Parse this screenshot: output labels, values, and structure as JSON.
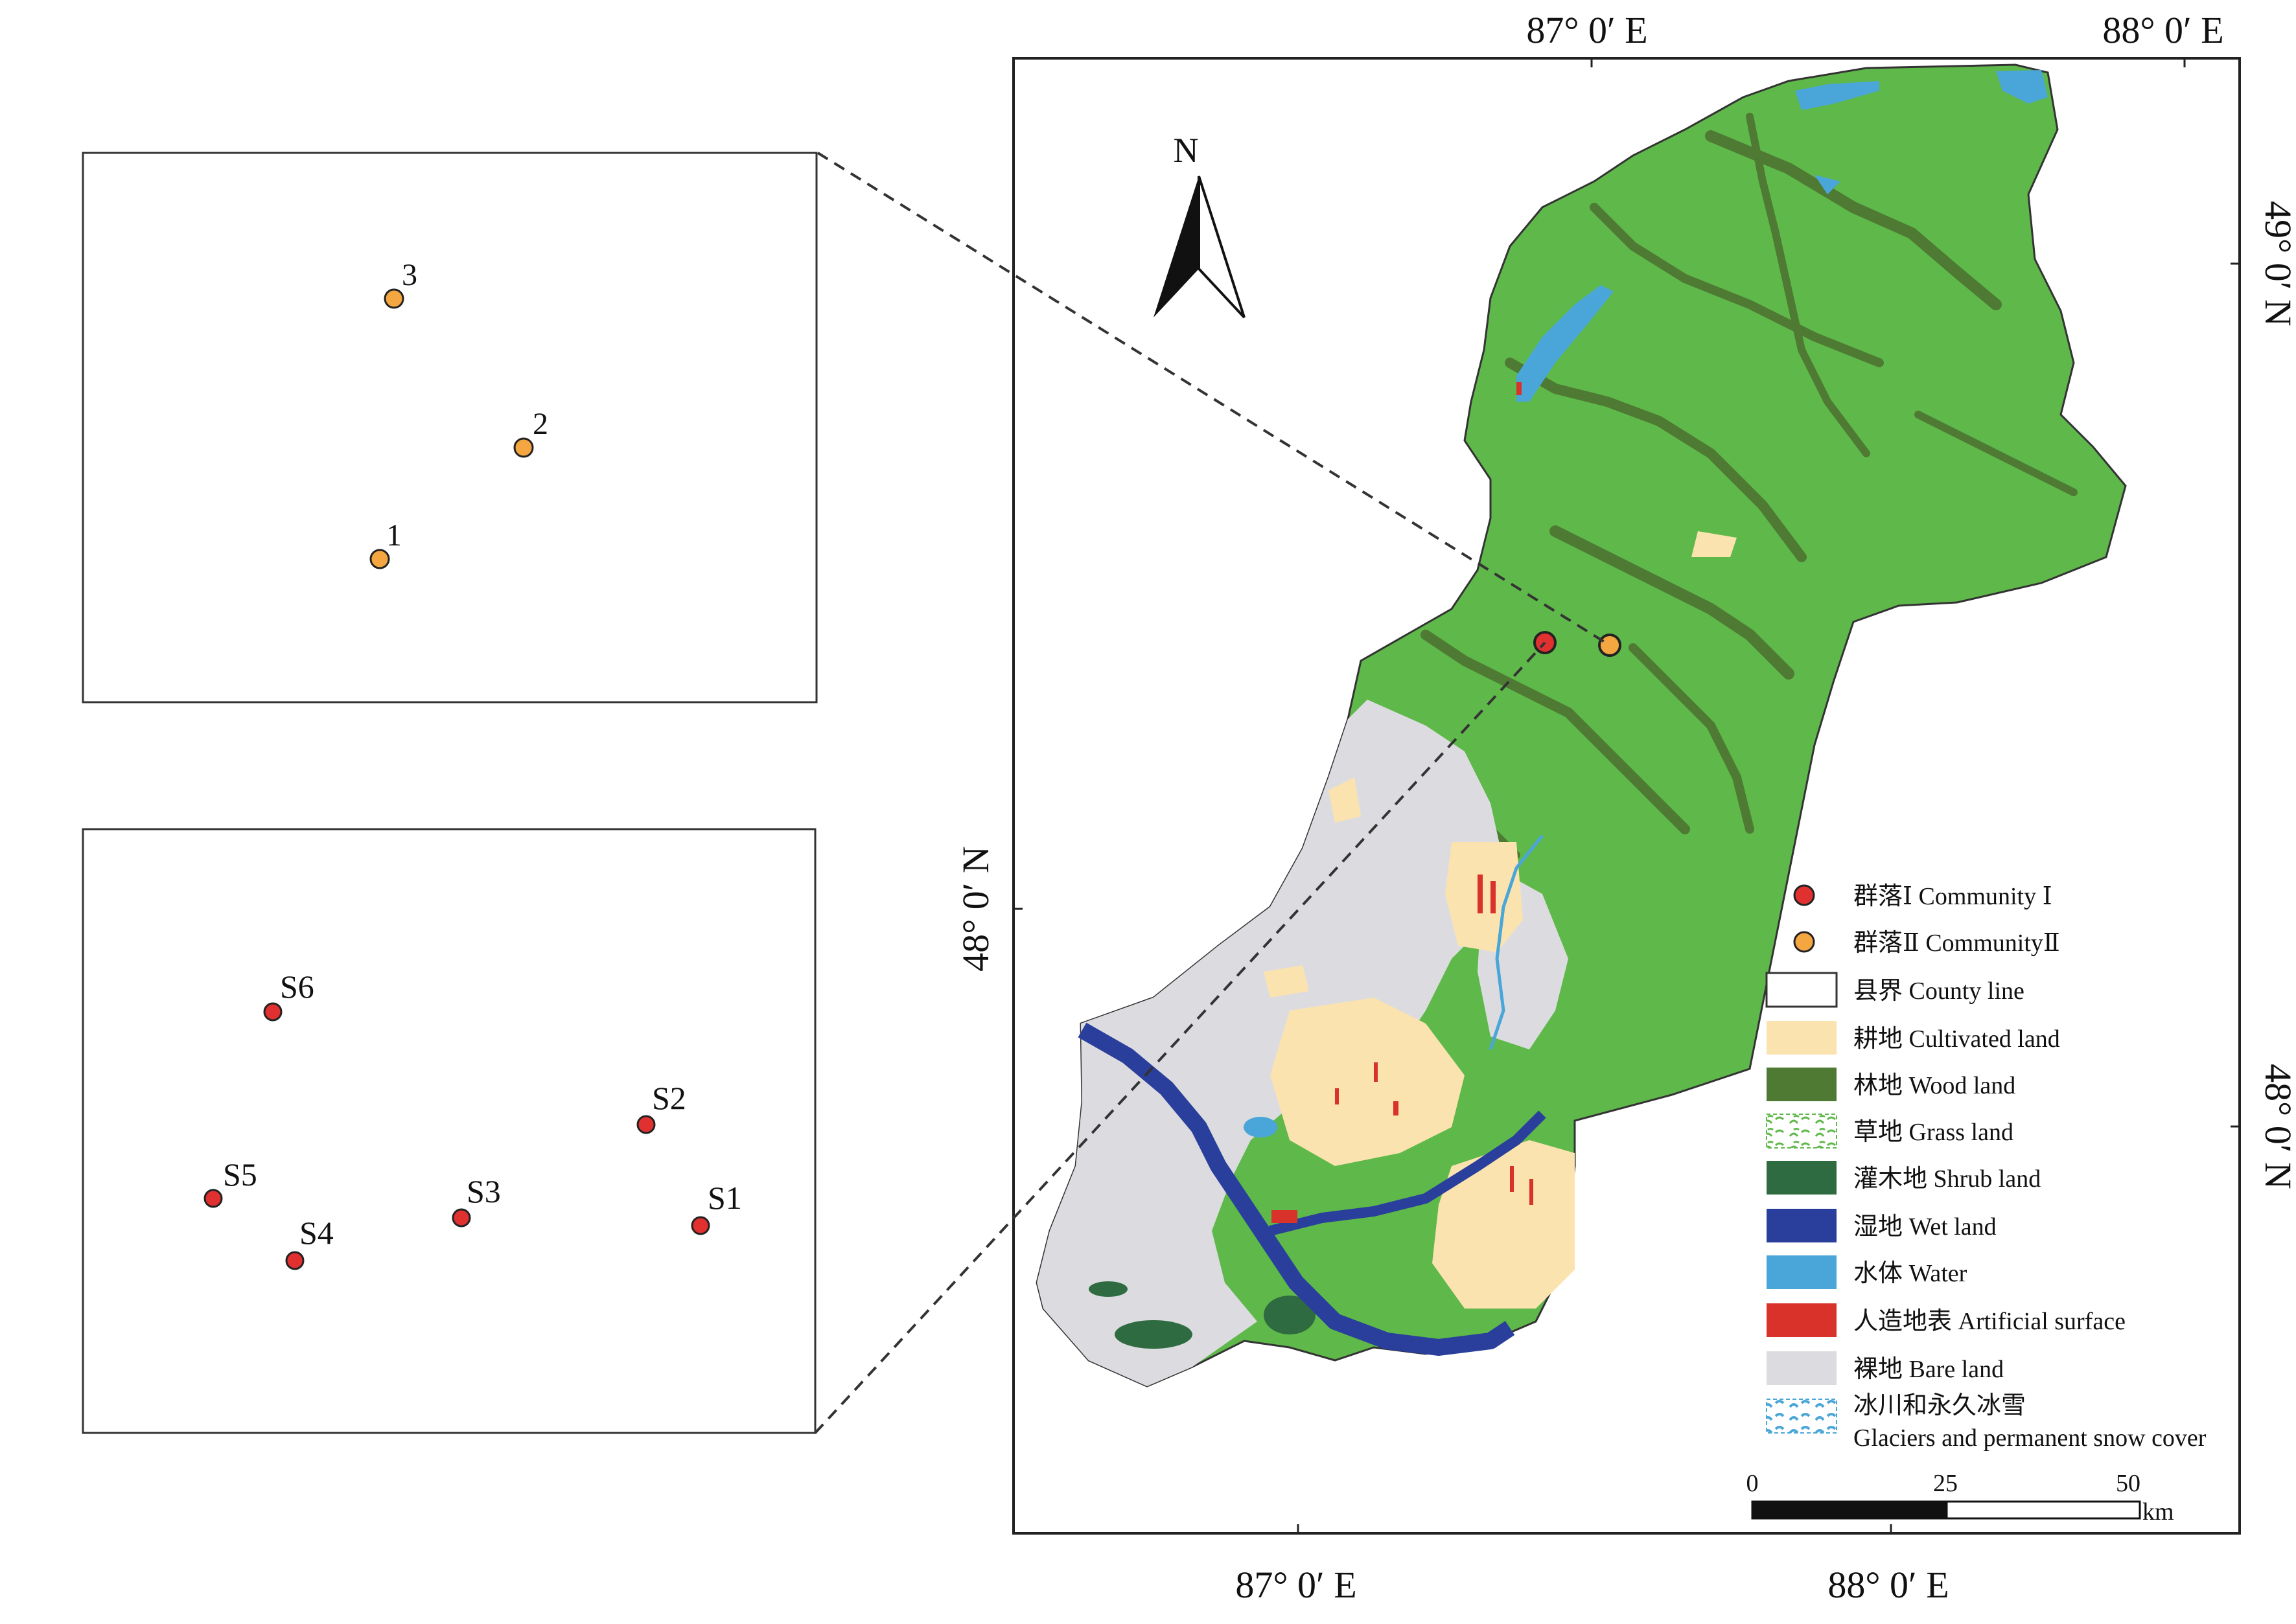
{
  "axes": {
    "lon_labels": [
      "87° 0′ E",
      "88° 0′ E"
    ],
    "lat_labels": [
      "49° 0′ N",
      "48° 0′ N"
    ]
  },
  "north_arrow": {
    "label": "N"
  },
  "inset_community2": {
    "points": [
      "1",
      "2",
      "3"
    ]
  },
  "inset_community1": {
    "points": [
      "S1",
      "S2",
      "S3",
      "S4",
      "S5",
      "S6"
    ]
  },
  "legend": {
    "items": [
      {
        "icon": "dot-red",
        "text": "群落Ⅰ Community Ⅰ",
        "color": "#e03030"
      },
      {
        "icon": "dot-orange",
        "text": "群落Ⅱ CommunityⅡ",
        "color": "#f4a640"
      },
      {
        "icon": "swatch-outline",
        "text": "县界 County line",
        "color": "#ffffff"
      },
      {
        "icon": "swatch",
        "text": "耕地 Cultivated land",
        "color": "#fbe3b0"
      },
      {
        "icon": "swatch",
        "text": "林地 Wood land",
        "color": "#4e7a33"
      },
      {
        "icon": "swatch-pattern-grass",
        "text": "草地 Grass land",
        "color": "#5fb84a"
      },
      {
        "icon": "swatch",
        "text": "灌木地 Shrub land",
        "color": "#2f6b40"
      },
      {
        "icon": "swatch",
        "text": "湿地 Wet land",
        "color": "#2a3f9b"
      },
      {
        "icon": "swatch",
        "text": "水体 Water",
        "color": "#4aa6d8"
      },
      {
        "icon": "swatch",
        "text": "人造地表 Artificial surface",
        "color": "#d8322a"
      },
      {
        "icon": "swatch",
        "text": "裸地 Bare land",
        "color": "#dcdce0"
      },
      {
        "icon": "swatch-pattern-snow",
        "text": "冰川和永久冰雪",
        "text2": "Glaciers and permanent snow cover",
        "color": "#4aa6d8"
      }
    ]
  },
  "scale_bar": {
    "ticks": [
      "0",
      "25",
      "50"
    ],
    "unit": "km"
  },
  "colors": {
    "grass": "#5fb84a",
    "wood": "#4e7a33",
    "bare": "#dcdce0",
    "cultivated": "#fbe3b0",
    "wet": "#2a3f9b",
    "water": "#4aa6d8",
    "artificial": "#d8322a",
    "shrub": "#2f6b40"
  }
}
